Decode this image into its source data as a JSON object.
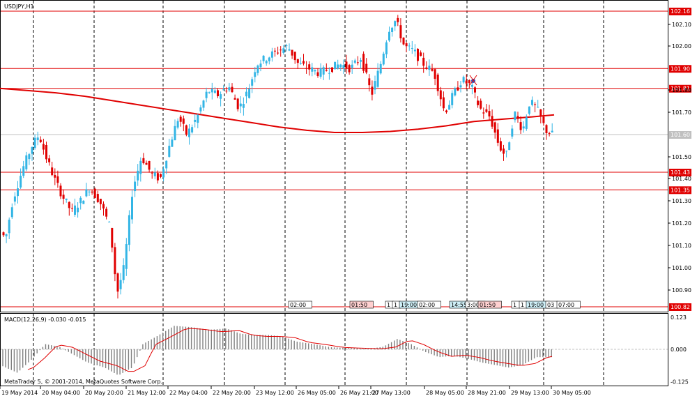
{
  "window": {
    "symbol_title": "USDJPY,H1"
  },
  "indicator": {
    "macd_label": "MACD(12,26,9) -0.030 -0.015"
  },
  "copyright": "MetaTrader 5, © 2001-2014, MetaQuotes Software Corp.",
  "chart_data": [
    {
      "type": "candlestick",
      "symbol": "USDJPY",
      "timeframe": "H1",
      "ylim": [
        100.82,
        102.2
      ],
      "y_ticks": [
        "102.10",
        "102.00",
        "101.80",
        "101.70",
        "101.50",
        "101.40",
        "101.30",
        "101.20",
        "101.10",
        "101.00",
        "100.90"
      ],
      "current_price": "101.60",
      "horizontal_levels": [
        {
          "value": 102.16,
          "label": "102.16",
          "color": "#e00000"
        },
        {
          "value": 101.9,
          "label": "101.90",
          "color": "#e00000"
        },
        {
          "value": 101.81,
          "label": "101.81",
          "color": "#e00000"
        },
        {
          "value": 101.43,
          "label": "101.43",
          "color": "#e00000"
        },
        {
          "value": 101.35,
          "label": "101.35",
          "color": "#e00000"
        },
        {
          "value": 100.82,
          "label": "100.82",
          "color": "#e00000"
        }
      ],
      "x_labels": [
        "19 May 2014",
        "20 May 04:00",
        "20 May 20:00",
        "21 May 12:00",
        "22 May 04:00",
        "22 May 20:00",
        "23 May 12:00",
        "26 May 05:00",
        "26 May 21:00",
        "27 May 13:00",
        "28 May 05:00",
        "28 May 21:00",
        "29 May 13:00",
        "30 May 05:00"
      ],
      "moving_average": {
        "color": "#e00000",
        "points": [
          [
            0,
            101.81
          ],
          [
            40,
            101.8
          ],
          [
            80,
            101.79
          ],
          [
            120,
            101.775
          ],
          [
            160,
            101.755
          ],
          [
            200,
            101.735
          ],
          [
            240,
            101.715
          ],
          [
            280,
            101.695
          ],
          [
            320,
            101.675
          ],
          [
            360,
            101.655
          ],
          [
            400,
            101.635
          ],
          [
            440,
            101.62
          ],
          [
            480,
            101.61
          ],
          [
            520,
            101.61
          ],
          [
            560,
            101.615
          ],
          [
            600,
            101.625
          ],
          [
            640,
            101.64
          ],
          [
            680,
            101.66
          ],
          [
            720,
            101.67
          ],
          [
            760,
            101.68
          ],
          [
            795,
            101.69
          ]
        ]
      },
      "series": [
        {
          "name": "bull",
          "color": "#33b5e5"
        },
        {
          "name": "bear",
          "color": "#e00000"
        }
      ],
      "session_markers": [
        "02:00",
        "01:50",
        "1",
        "1",
        "19:00",
        "02:00",
        "14:55",
        "3:00",
        "01:50",
        "1",
        "1",
        "19:00",
        "03",
        "07:00"
      ]
    },
    {
      "type": "bar",
      "name": "MACD(12,26,9)",
      "macd": -0.03,
      "signal": -0.015,
      "y_ticks": [
        "0.123",
        "0.000",
        "-0.125"
      ],
      "ylim": [
        -0.135,
        0.13
      ],
      "histogram_color": "#808080",
      "signal_color": "#e00000"
    }
  ]
}
